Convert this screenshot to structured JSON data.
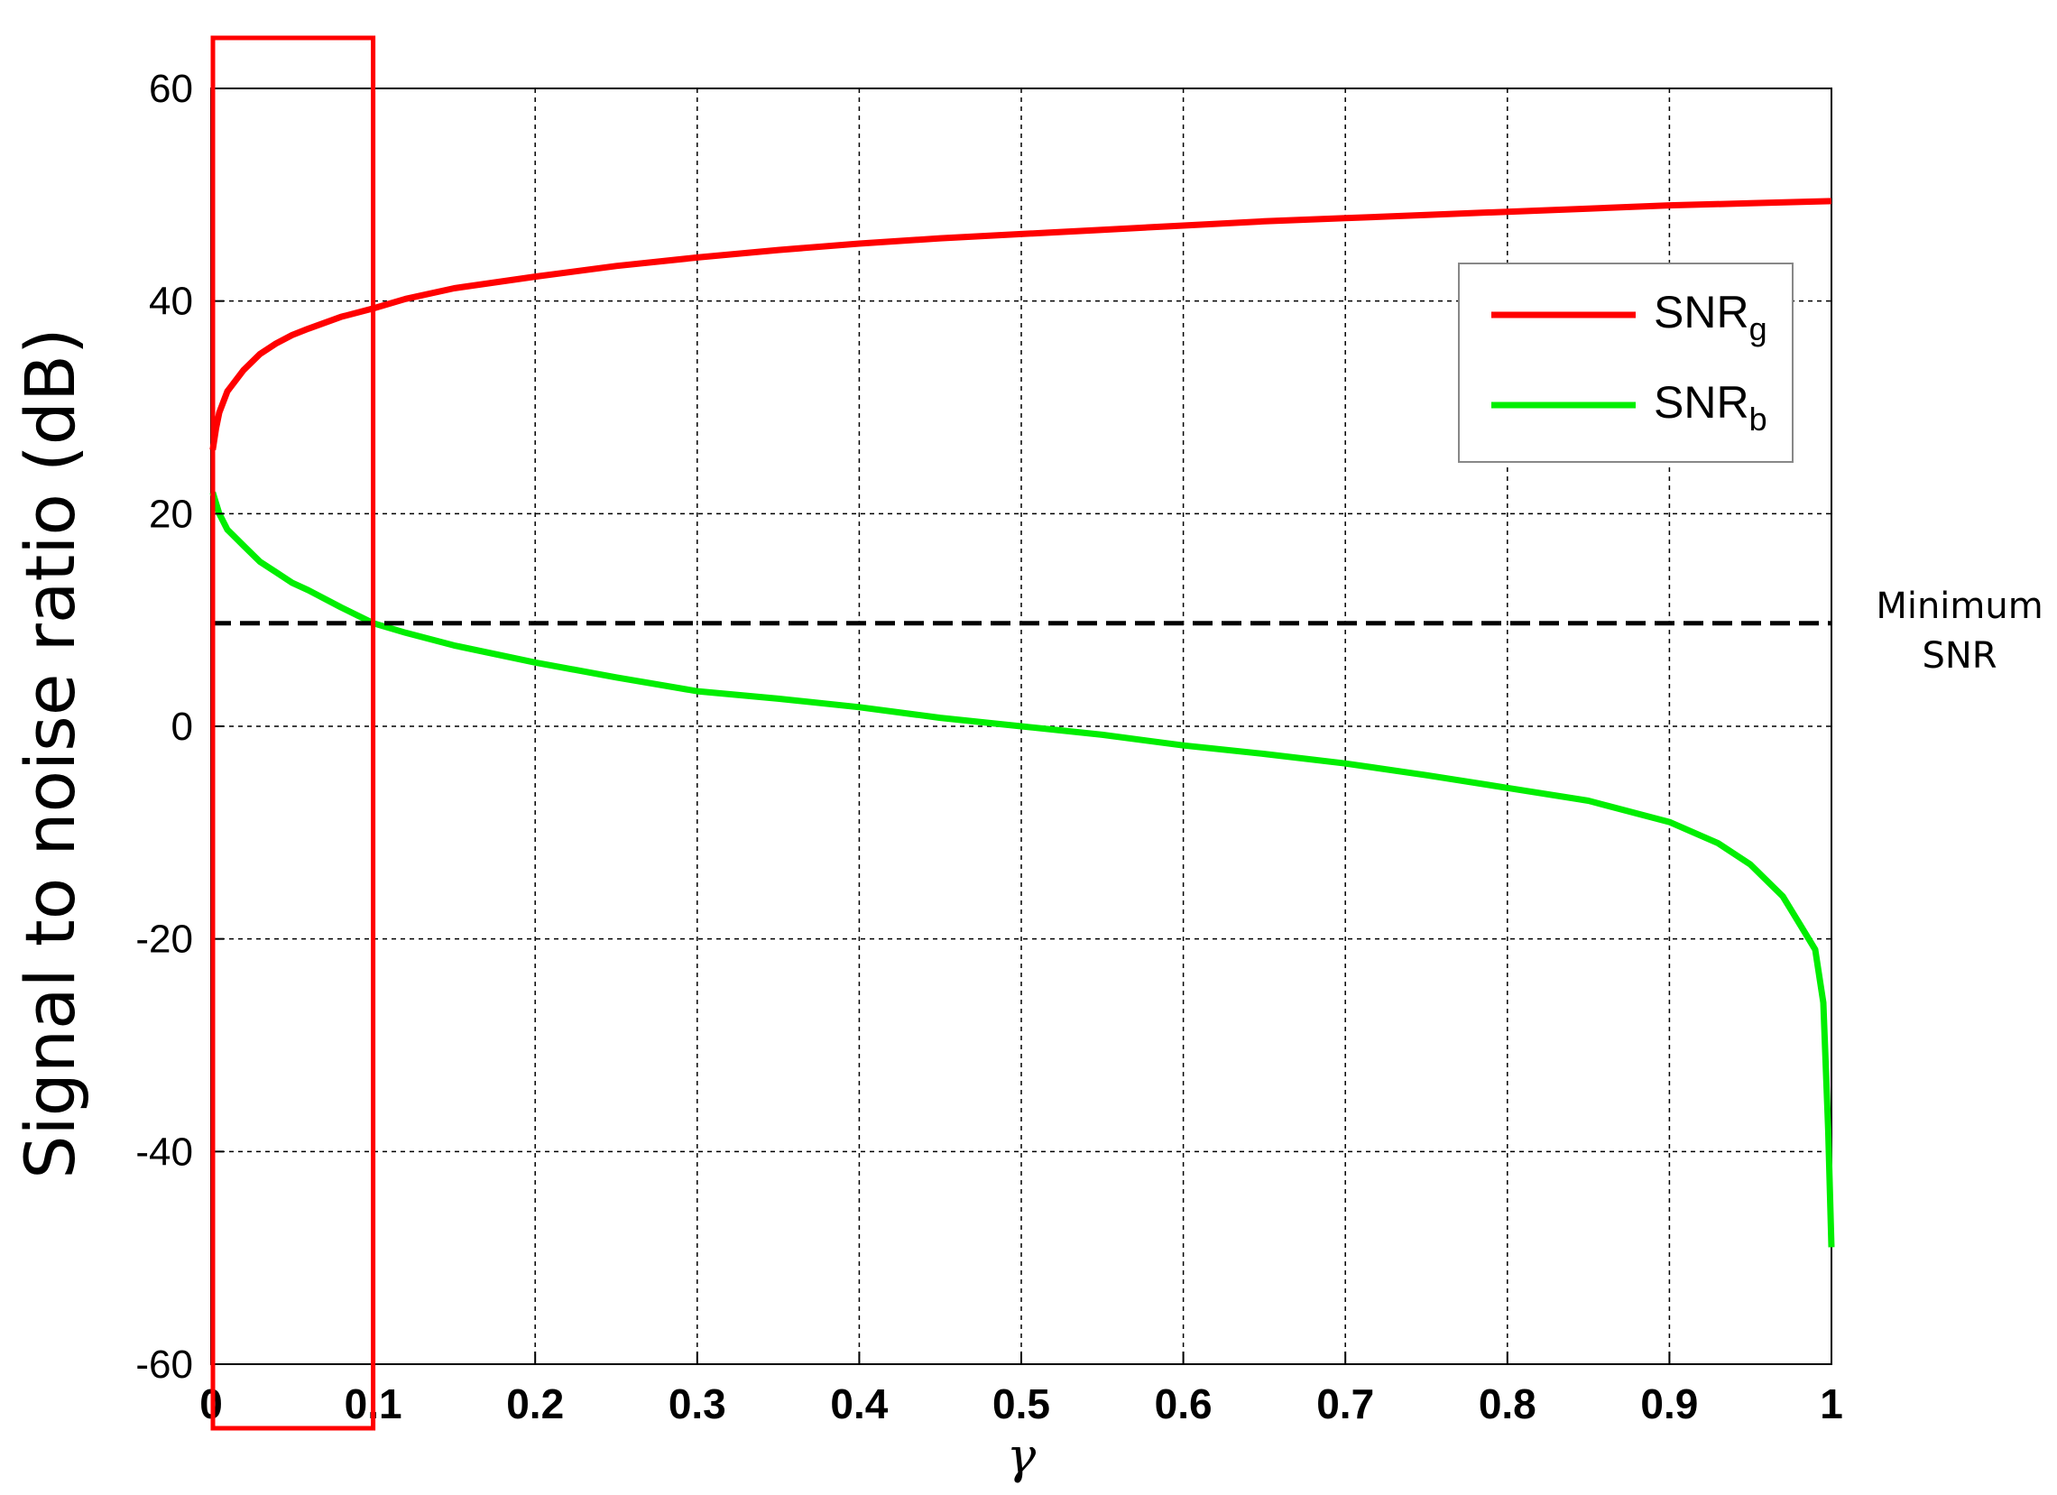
{
  "chart_data": {
    "type": "line",
    "title": "",
    "xlabel": "γ",
    "ylabel": "Signal to noise ratio (dB)",
    "xlim": [
      0,
      1
    ],
    "ylim": [
      -60,
      60
    ],
    "xticks": [
      "0",
      "0.1",
      "0.2",
      "0.3",
      "0.4",
      "0.5",
      "0.6",
      "0.7",
      "0.8",
      "0.9",
      "1"
    ],
    "yticks": [
      "60",
      "40",
      "20",
      "0",
      "-20",
      "-40",
      "-60"
    ],
    "grid": true,
    "legend_position": "top-right",
    "series": [
      {
        "name": "SNR",
        "name_subscript": "g",
        "color": "#ff0000",
        "x": [
          0.001,
          0.003,
          0.005,
          0.01,
          0.02,
          0.03,
          0.04,
          0.05,
          0.06,
          0.08,
          0.1,
          0.12,
          0.15,
          0.2,
          0.25,
          0.3,
          0.35,
          0.4,
          0.45,
          0.5,
          0.55,
          0.6,
          0.65,
          0.7,
          0.75,
          0.8,
          0.85,
          0.9,
          0.95,
          1.0
        ],
        "y": [
          26,
          28,
          29.5,
          31.5,
          33.5,
          35,
          36,
          36.8,
          37.4,
          38.5,
          39.3,
          40.2,
          41.2,
          42.3,
          43.3,
          44.1,
          44.8,
          45.4,
          45.9,
          46.3,
          46.7,
          47.1,
          47.5,
          47.8,
          48.1,
          48.4,
          48.7,
          49.0,
          49.2,
          49.4
        ]
      },
      {
        "name": "SNR",
        "name_subscript": "b",
        "color": "#00ee00",
        "x": [
          0.001,
          0.003,
          0.005,
          0.01,
          0.02,
          0.03,
          0.04,
          0.05,
          0.06,
          0.08,
          0.1,
          0.12,
          0.15,
          0.2,
          0.25,
          0.3,
          0.35,
          0.4,
          0.45,
          0.5,
          0.55,
          0.6,
          0.65,
          0.7,
          0.75,
          0.8,
          0.85,
          0.9,
          0.93,
          0.95,
          0.97,
          0.98,
          0.99,
          0.995,
          0.998,
          1.0
        ],
        "y": [
          22,
          21,
          20,
          18.5,
          17,
          15.5,
          14.5,
          13.5,
          12.8,
          11.2,
          9.7,
          8.8,
          7.6,
          6.0,
          4.6,
          3.3,
          2.6,
          1.8,
          0.8,
          0,
          -0.8,
          -1.8,
          -2.6,
          -3.5,
          -4.6,
          -5.8,
          -7.0,
          -9.0,
          -11.0,
          -13.0,
          -16.0,
          -18.5,
          -21.0,
          -26.0,
          -38.0,
          -49.0
        ]
      },
      {
        "name": "Minimum SNR",
        "color": "#000000",
        "dashed": true,
        "x": [
          0,
          1
        ],
        "y": [
          9.7,
          9.7
        ]
      }
    ],
    "annotations": [
      {
        "text_line1": "Minimum",
        "text_line2": "SNR"
      }
    ],
    "highlight_box": {
      "x_range": [
        0,
        0.1
      ],
      "color": "#ff0000"
    },
    "left_edge_spike": {
      "x": 0,
      "y_range": [
        -1.5,
        33.5
      ]
    }
  }
}
